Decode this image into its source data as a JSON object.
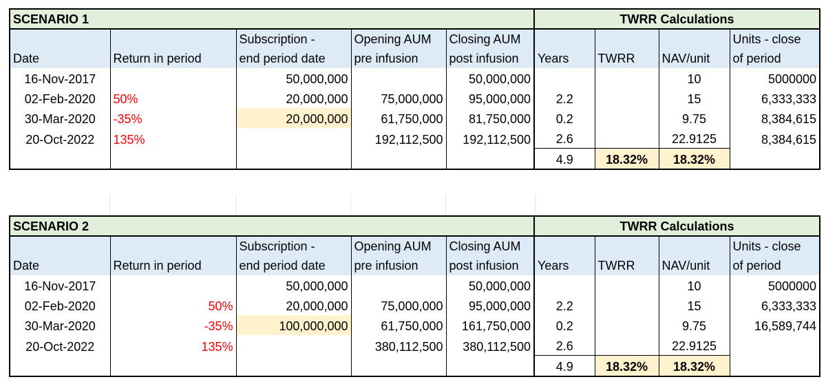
{
  "scenarios": [
    {
      "title": "SCENARIO 1",
      "calc_title": "TWRR Calculations",
      "headers": {
        "date": "Date",
        "return_in_period": "Return in period",
        "subscription_line1": "Subscription -",
        "subscription_line2": "end period date",
        "opening_line1": "Opening AUM",
        "opening_line2": "pre infusion",
        "closing_line1": "Closing AUM",
        "closing_line2": "post infusion",
        "years": "Years",
        "twrr": "TWRR",
        "nav": "NAV/unit",
        "units_line1": "Units - close",
        "units_line2": "of period"
      },
      "return_align": "left",
      "rows": [
        {
          "date": "16-Nov-2017",
          "ret": "",
          "sub": "50,000,000",
          "open": "",
          "close": "50,000,000",
          "years": "",
          "twrr": "",
          "nav": "10",
          "units": "5000000"
        },
        {
          "date": "02-Feb-2020",
          "ret": "50%",
          "sub": "20,000,000",
          "open": "75,000,000",
          "close": "95,000,000",
          "years": "2.2",
          "twrr": "",
          "nav": "15",
          "units": "6,333,333"
        },
        {
          "date": "30-Mar-2020",
          "ret": "-35%",
          "sub": "20,000,000",
          "open": "61,750,000",
          "close": "81,750,000",
          "years": "0.2",
          "twrr": "",
          "nav": "9.75",
          "units": "8,384,615"
        },
        {
          "date": "20-Oct-2022",
          "ret": "135%",
          "sub": "",
          "open": "192,112,500",
          "close": "192,112,500",
          "years": "2.6",
          "twrr": "",
          "nav": "22.9125",
          "units": "8,384,615"
        }
      ],
      "totals": {
        "years": "4.9",
        "twrr": "18.32%",
        "nav": "18.32%"
      }
    },
    {
      "title": "SCENARIO 2",
      "calc_title": "TWRR Calculations",
      "headers": {
        "date": "Date",
        "return_in_period": "Return in period",
        "subscription_line1": "Subscription -",
        "subscription_line2": "end period date",
        "opening_line1": "Opening AUM",
        "opening_line2": "pre infusion",
        "closing_line1": "Closing AUM",
        "closing_line2": "post infusion",
        "years": "Years",
        "twrr": "TWRR",
        "nav": "NAV/unit",
        "units_line1": "Units - close",
        "units_line2": "of period"
      },
      "return_align": "right",
      "rows": [
        {
          "date": "16-Nov-2017",
          "ret": "",
          "sub": "50,000,000",
          "open": "",
          "close": "50,000,000",
          "years": "",
          "twrr": "",
          "nav": "10",
          "units": "5000000"
        },
        {
          "date": "02-Feb-2020",
          "ret": "50%",
          "sub": "20,000,000",
          "open": "75,000,000",
          "close": "95,000,000",
          "years": "2.2",
          "twrr": "",
          "nav": "15",
          "units": "6,333,333"
        },
        {
          "date": "30-Mar-2020",
          "ret": "-35%",
          "sub": "100,000,000",
          "open": "61,750,000",
          "close": "161,750,000",
          "years": "0.2",
          "twrr": "",
          "nav": "9.75",
          "units": "16,589,744"
        },
        {
          "date": "20-Oct-2022",
          "ret": "135%",
          "sub": "",
          "open": "380,112,500",
          "close": "380,112,500",
          "years": "2.6",
          "twrr": "",
          "nav": "22.9125",
          "units": ""
        }
      ],
      "totals": {
        "years": "4.9",
        "twrr": "18.32%",
        "nav": "18.32%"
      }
    }
  ],
  "colors": {
    "title_fill": "#e2efda",
    "header_fill": "#ddebf7",
    "highlight_fill": "#fff2cc",
    "negative_return": "#ff0000"
  }
}
